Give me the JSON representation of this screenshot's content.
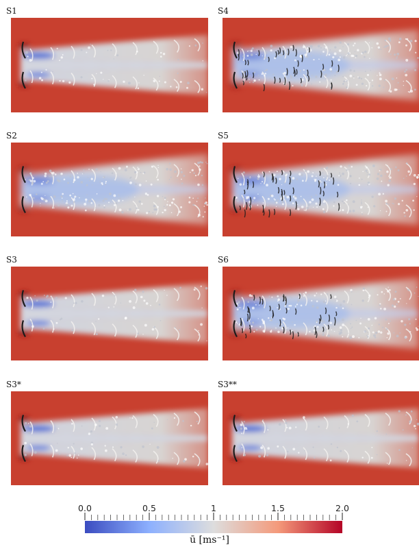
{
  "panels": [
    {
      "label": "S1"
    },
    {
      "label": "S4"
    },
    {
      "label": "S2"
    },
    {
      "label": "S5"
    },
    {
      "label": "S3"
    },
    {
      "label": "S6"
    },
    {
      "label": "S3*"
    },
    {
      "label": "S3**"
    }
  ],
  "colorbar": {
    "title": "ū [ms⁻¹]",
    "ticks": [
      "0.0",
      "0.5",
      "1",
      "1.5",
      "2.0"
    ],
    "range": [
      0,
      2
    ],
    "colors": {
      "low": "#3b4cc0",
      "mid": "#dddddd",
      "high": "#b40426"
    }
  }
}
